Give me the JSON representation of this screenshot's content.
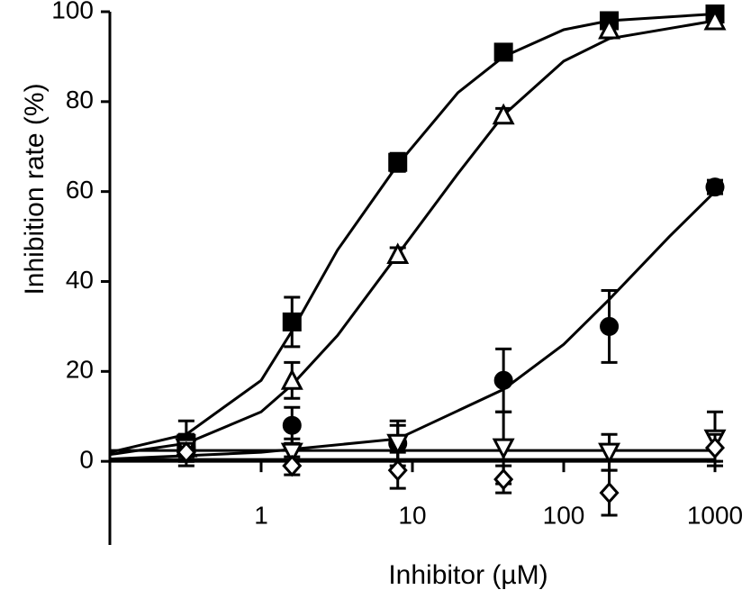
{
  "chart_data": {
    "type": "scatter",
    "xlabel": "Inhibitor (µM)",
    "ylabel": "Inhibition rate (%)",
    "xscale": "log",
    "xlim": [
      0.1,
      1000
    ],
    "xticks": [
      1,
      10,
      100,
      1000
    ],
    "ylim": [
      -18.6,
      100
    ],
    "yticks": [
      0,
      20,
      40,
      60,
      80,
      100
    ],
    "x": [
      0.32,
      1.6,
      8,
      40,
      200,
      1000
    ],
    "series": [
      {
        "marker": "square",
        "filled": true,
        "color": "#000000",
        "values": [
          4,
          31,
          66.5,
          91,
          98,
          99.5
        ],
        "errors": [
          5,
          5.5,
          2,
          1.5,
          1,
          1
        ]
      },
      {
        "marker": "triangle-up",
        "filled": false,
        "color": "#000000",
        "values": [
          3,
          18,
          46,
          77,
          96,
          98
        ],
        "errors": [
          3,
          4,
          1.5,
          1.5,
          1,
          1
        ]
      },
      {
        "marker": "circle",
        "filled": true,
        "color": "#000000",
        "values": [
          3,
          8,
          4,
          18,
          30,
          61
        ],
        "errors": [
          2,
          4,
          4,
          7,
          8,
          1.5
        ]
      },
      {
        "marker": "triangle-down",
        "filled": false,
        "color": "#000000",
        "values": [
          3,
          2,
          4,
          3,
          2,
          5
        ],
        "errors": [
          3,
          3,
          5,
          8,
          4,
          6
        ]
      },
      {
        "marker": "diamond",
        "filled": false,
        "color": "#000000",
        "values": [
          2,
          -1,
          -2,
          -4,
          -7,
          3
        ],
        "errors": [
          2,
          2,
          4,
          3,
          5,
          3
        ]
      }
    ],
    "curves": [
      {
        "x": [
          0.1,
          0.32,
          1,
          1.6,
          3.2,
          8,
          20,
          40,
          100,
          200,
          1000
        ],
        "values": [
          2,
          6,
          18,
          29,
          47,
          66,
          82,
          90,
          96,
          98,
          99.5
        ]
      },
      {
        "x": [
          0.1,
          0.32,
          1,
          1.6,
          3.2,
          8,
          20,
          40,
          100,
          200,
          1000
        ],
        "values": [
          1.5,
          4,
          11,
          17,
          28,
          46,
          64,
          77,
          89,
          94,
          98
        ]
      },
      {
        "x": [
          0.1,
          1,
          8,
          40,
          100,
          200,
          500,
          1000
        ],
        "values": [
          0.5,
          2,
          5,
          16,
          26,
          36,
          50,
          60
        ]
      },
      {
        "x": [
          0.1,
          1000
        ],
        "values": [
          2.4,
          2.4
        ]
      },
      {
        "x": [
          0.1,
          1000
        ],
        "values": [
          0.4,
          0.4
        ]
      }
    ]
  }
}
